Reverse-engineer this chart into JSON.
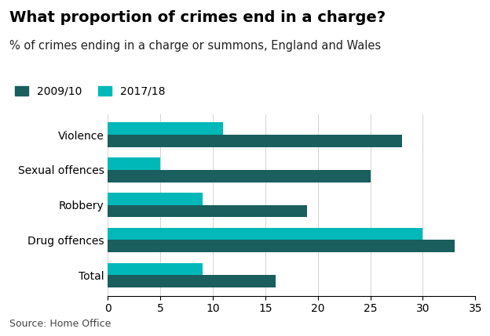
{
  "title": "What proportion of crimes end in a charge?",
  "subtitle": "% of crimes ending in a charge or summons, England and Wales",
  "source": "Source: Home Office",
  "categories": [
    "Violence",
    "Sexual offences",
    "Robbery",
    "Drug offences",
    "Total"
  ],
  "values_2009": [
    28,
    25,
    19,
    33,
    16
  ],
  "values_2017": [
    11,
    5,
    9,
    30,
    9
  ],
  "color_2009": "#1a5e5e",
  "color_2017": "#00b8b8",
  "xlim": [
    0,
    35
  ],
  "xticks": [
    0,
    5,
    10,
    15,
    20,
    25,
    30,
    35
  ],
  "legend_labels": [
    "2009/10",
    "2017/18"
  ],
  "bar_height": 0.35,
  "title_fontsize": 14,
  "subtitle_fontsize": 10.5,
  "tick_fontsize": 10,
  "legend_fontsize": 10,
  "source_fontsize": 9
}
